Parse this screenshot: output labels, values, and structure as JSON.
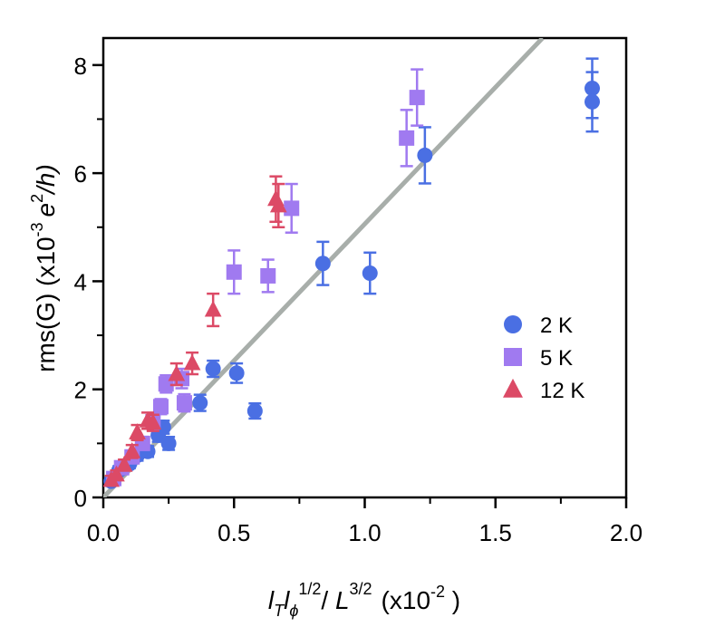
{
  "chart_data": {
    "type": "scatter",
    "title": "",
    "xlabel": {
      "l_t": "l",
      "t_sub": "T",
      "l_phi": "l",
      "phi_sub": "ϕ",
      "exp_half": "1/2",
      "slash": "/ ",
      "L": "L",
      "exp_32": "3/2",
      "units_pre": "(x10",
      "units_exp": "-2",
      "units_post": " )"
    },
    "ylabel": {
      "pre": "rms(G)  (x10",
      "exp": "-3",
      "e": "e",
      "e_exp": "2",
      "post": "/h)"
    },
    "xlim": [
      0,
      2.0
    ],
    "ylim": [
      0,
      8.5
    ],
    "x_ticks": [
      "0.0",
      "0.5",
      "1.0",
      "1.5",
      "2.0"
    ],
    "y_ticks": [
      "0",
      "2",
      "4",
      "6",
      "8"
    ],
    "fit_line": {
      "x": [
        0.0,
        1.68
      ],
      "y": [
        0.0,
        8.5
      ],
      "color": "#a8aeaa"
    },
    "series": [
      {
        "name": "2 K",
        "marker": "circle",
        "color": "#4a6fe3",
        "points": [
          {
            "x": 0.03,
            "y": 0.3,
            "err": 0.08
          },
          {
            "x": 0.06,
            "y": 0.5,
            "err": 0.08
          },
          {
            "x": 0.1,
            "y": 0.62,
            "err": 0.08
          },
          {
            "x": 0.13,
            "y": 0.78,
            "err": 0.1
          },
          {
            "x": 0.17,
            "y": 0.85,
            "err": 0.1
          },
          {
            "x": 0.21,
            "y": 1.15,
            "err": 0.12
          },
          {
            "x": 0.23,
            "y": 1.3,
            "err": 0.12
          },
          {
            "x": 0.25,
            "y": 1.0,
            "err": 0.12
          },
          {
            "x": 0.37,
            "y": 1.75,
            "err": 0.15
          },
          {
            "x": 0.42,
            "y": 2.38,
            "err": 0.15
          },
          {
            "x": 0.51,
            "y": 2.3,
            "err": 0.18
          },
          {
            "x": 0.58,
            "y": 1.6,
            "err": 0.14
          },
          {
            "x": 0.84,
            "y": 4.33,
            "err": 0.4
          },
          {
            "x": 1.02,
            "y": 4.15,
            "err": 0.38
          },
          {
            "x": 1.23,
            "y": 6.33,
            "err": 0.52
          },
          {
            "x": 1.87,
            "y": 7.57,
            "err": 0.55
          },
          {
            "x": 1.87,
            "y": 7.32,
            "err": 0.55
          }
        ]
      },
      {
        "name": "5 K",
        "marker": "square",
        "color": "#a07af0",
        "points": [
          {
            "x": 0.04,
            "y": 0.35,
            "err": 0.08
          },
          {
            "x": 0.07,
            "y": 0.55,
            "err": 0.08
          },
          {
            "x": 0.11,
            "y": 0.75,
            "err": 0.1
          },
          {
            "x": 0.15,
            "y": 1.0,
            "err": 0.12
          },
          {
            "x": 0.19,
            "y": 1.4,
            "err": 0.14
          },
          {
            "x": 0.22,
            "y": 1.68,
            "err": 0.14
          },
          {
            "x": 0.24,
            "y": 2.1,
            "err": 0.16
          },
          {
            "x": 0.31,
            "y": 1.75,
            "err": 0.16
          },
          {
            "x": 0.3,
            "y": 2.2,
            "err": 0.18
          },
          {
            "x": 0.5,
            "y": 4.17,
            "err": 0.4
          },
          {
            "x": 0.63,
            "y": 4.1,
            "err": 0.3
          },
          {
            "x": 0.72,
            "y": 5.35,
            "err": 0.45
          },
          {
            "x": 1.16,
            "y": 6.65,
            "err": 0.52
          },
          {
            "x": 1.2,
            "y": 7.4,
            "err": 0.52
          }
        ]
      },
      {
        "name": "12 K",
        "marker": "triangle",
        "color": "#dc4a66",
        "points": [
          {
            "x": 0.03,
            "y": 0.32,
            "err": 0.08
          },
          {
            "x": 0.05,
            "y": 0.42,
            "err": 0.08
          },
          {
            "x": 0.08,
            "y": 0.6,
            "err": 0.1
          },
          {
            "x": 0.11,
            "y": 0.85,
            "err": 0.12
          },
          {
            "x": 0.13,
            "y": 1.2,
            "err": 0.14
          },
          {
            "x": 0.17,
            "y": 1.42,
            "err": 0.15
          },
          {
            "x": 0.19,
            "y": 1.38,
            "err": 0.15
          },
          {
            "x": 0.28,
            "y": 2.28,
            "err": 0.2
          },
          {
            "x": 0.34,
            "y": 2.48,
            "err": 0.2
          },
          {
            "x": 0.42,
            "y": 3.47,
            "err": 0.3
          },
          {
            "x": 0.66,
            "y": 5.52,
            "err": 0.42
          },
          {
            "x": 0.67,
            "y": 5.4,
            "err": 0.4
          }
        ]
      }
    ],
    "legend": {
      "position": "right-middle",
      "entries": [
        "2 K",
        "5 K",
        "12 K"
      ]
    }
  }
}
